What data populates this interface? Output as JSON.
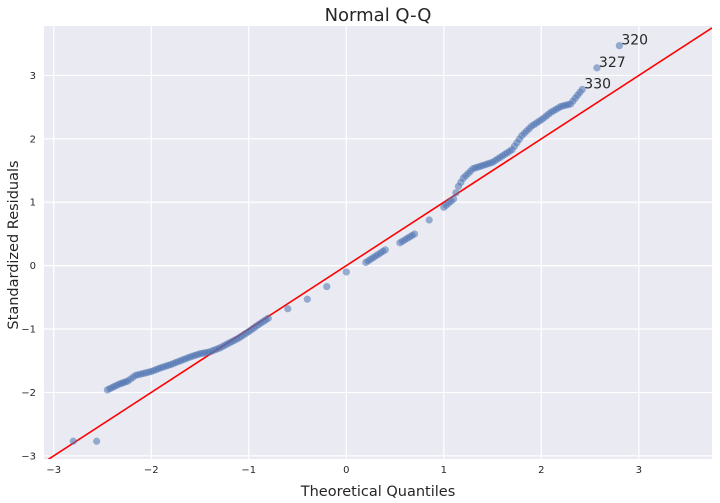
{
  "chart_data": {
    "type": "scatter",
    "title": "Normal Q-Q",
    "xlabel": "Theoretical Quantiles",
    "ylabel": "Standardized Residuals",
    "xlim": [
      -3.1,
      3.75
    ],
    "ylim": [
      -3.05,
      3.78
    ],
    "xticks": [
      -3,
      -2,
      -1,
      0,
      1,
      2,
      3
    ],
    "yticks": [
      -3,
      -2,
      -1,
      0,
      1,
      2,
      3
    ],
    "xtick_labels": [
      "−3",
      "−2",
      "−1",
      "0",
      "1",
      "2",
      "3"
    ],
    "ytick_labels": [
      "−3",
      "−2",
      "−1",
      "0",
      "1",
      "2",
      "3"
    ],
    "grid": true,
    "background_color": "#eaeaf2",
    "point_color": "#4c72b0",
    "line_color": "#ff0000",
    "reference_line": {
      "x": [
        -3.1,
        3.75
      ],
      "y": [
        -3.1,
        3.75
      ]
    },
    "annotations": [
      {
        "text": "320",
        "x": 2.8,
        "y": 3.47
      },
      {
        "text": "327",
        "x": 2.57,
        "y": 3.12
      },
      {
        "text": "330",
        "x": 2.42,
        "y": 2.78
      }
    ],
    "anchor_points": [
      [
        -2.8,
        -2.77
      ],
      [
        -2.56,
        -2.77
      ],
      [
        -2.45,
        -1.96
      ],
      [
        -2.33,
        -1.87
      ],
      [
        -2.24,
        -1.82
      ],
      [
        -2.16,
        -1.73
      ],
      [
        -2.08,
        -1.7
      ],
      [
        -2.0,
        -1.67
      ],
      [
        -1.9,
        -1.61
      ],
      [
        -1.8,
        -1.56
      ],
      [
        -1.7,
        -1.5
      ],
      [
        -1.6,
        -1.44
      ],
      [
        -1.5,
        -1.39
      ],
      [
        -1.4,
        -1.36
      ],
      [
        -1.3,
        -1.3
      ],
      [
        -1.2,
        -1.22
      ],
      [
        -1.1,
        -1.14
      ],
      [
        -1.0,
        -1.04
      ],
      [
        -0.9,
        -0.93
      ],
      [
        -0.8,
        -0.83
      ],
      [
        -0.6,
        -0.68
      ],
      [
        -0.4,
        -0.53
      ],
      [
        -0.2,
        -0.33
      ],
      [
        0.0,
        -0.1
      ],
      [
        0.2,
        0.05
      ],
      [
        0.3,
        0.15
      ],
      [
        0.4,
        0.25
      ],
      [
        0.55,
        0.36
      ],
      [
        0.7,
        0.5
      ],
      [
        0.85,
        0.72
      ],
      [
        1.0,
        0.92
      ],
      [
        1.1,
        1.05
      ],
      [
        1.15,
        1.25
      ],
      [
        1.2,
        1.38
      ],
      [
        1.3,
        1.53
      ],
      [
        1.4,
        1.58
      ],
      [
        1.5,
        1.63
      ],
      [
        1.6,
        1.73
      ],
      [
        1.7,
        1.83
      ],
      [
        1.8,
        2.05
      ],
      [
        1.9,
        2.2
      ],
      [
        2.0,
        2.3
      ],
      [
        2.1,
        2.42
      ],
      [
        2.2,
        2.51
      ],
      [
        2.3,
        2.55
      ],
      [
        2.42,
        2.78
      ],
      [
        2.57,
        3.12
      ],
      [
        2.8,
        3.47
      ]
    ]
  }
}
